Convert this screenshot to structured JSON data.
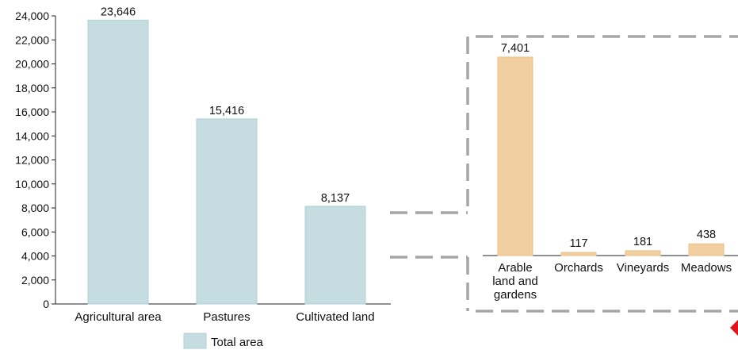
{
  "colors": {
    "total_bar": "#c5dde0",
    "total_bar_edge": "#b2d0d4",
    "detail_bar": "#f2cfa0",
    "detail_bar_edge": "#e9bf88",
    "dash": "#a6a6a6",
    "marker": "#e0161e",
    "axis": "#222222"
  },
  "legend": {
    "label": "Total area"
  },
  "chart_data": [
    {
      "type": "bar",
      "categories": [
        "Agricultural area",
        "Pastures",
        "Cultivated land"
      ],
      "series": [
        {
          "name": "Total area",
          "values": [
            23646,
            15416,
            8137
          ]
        }
      ],
      "data_labels": [
        "23,646",
        "15,416",
        "8,137"
      ],
      "ylim": [
        0,
        24000
      ],
      "yticks": [
        "0",
        "2,000",
        "4,000",
        "6,000",
        "8,000",
        "10,000",
        "12,000",
        "14,000",
        "16,000",
        "18,000",
        "20,000",
        "22,000",
        "24,000"
      ],
      "grid": false,
      "legend": "bottom"
    },
    {
      "type": "bar",
      "categories": [
        [
          "Arable",
          "land and",
          "gardens"
        ],
        [
          "Orchards"
        ],
        [
          "Vineyards"
        ],
        [
          "Meadows"
        ]
      ],
      "values": [
        7401,
        117,
        181,
        438
      ],
      "data_labels": [
        "7,401",
        "117",
        "181",
        "438"
      ],
      "ylim": [
        0,
        8137
      ],
      "grid": false,
      "note": "breakdown of Cultivated land"
    }
  ]
}
